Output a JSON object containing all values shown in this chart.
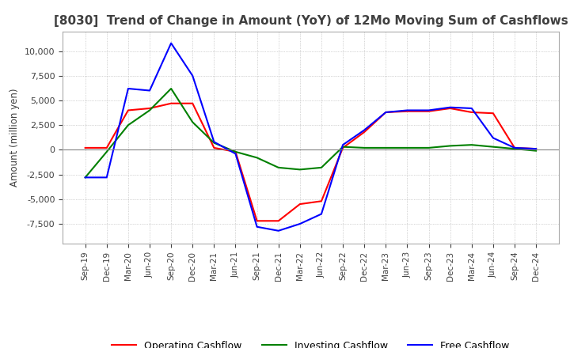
{
  "title": "[8030]  Trend of Change in Amount (YoY) of 12Mo Moving Sum of Cashflows",
  "ylabel": "Amount (million yen)",
  "x_labels": [
    "Sep-19",
    "Dec-19",
    "Mar-20",
    "Jun-20",
    "Sep-20",
    "Dec-20",
    "Mar-21",
    "Jun-21",
    "Sep-21",
    "Dec-21",
    "Mar-22",
    "Jun-22",
    "Sep-22",
    "Dec-22",
    "Mar-23",
    "Jun-23",
    "Sep-23",
    "Dec-23",
    "Mar-24",
    "Jun-24",
    "Sep-24",
    "Dec-24"
  ],
  "operating": [
    200,
    200,
    4000,
    4200,
    4700,
    4700,
    200,
    -200,
    -7200,
    -7200,
    -5500,
    -5200,
    200,
    1800,
    3800,
    3900,
    3900,
    4200,
    3800,
    3700,
    200,
    100
  ],
  "investing": [
    -2800,
    -200,
    2500,
    4000,
    6200,
    2800,
    700,
    -200,
    -800,
    -1800,
    -2000,
    -1800,
    300,
    200,
    200,
    200,
    200,
    400,
    500,
    300,
    100,
    -100
  ],
  "free": [
    -2800,
    -2800,
    6200,
    6000,
    10800,
    7500,
    800,
    -400,
    -7800,
    -8200,
    -7500,
    -6500,
    500,
    2000,
    3800,
    4000,
    4000,
    4300,
    4200,
    1200,
    200,
    100
  ],
  "operating_color": "#ff0000",
  "investing_color": "#008000",
  "free_color": "#0000ff",
  "ylim": [
    -9500,
    12000
  ],
  "yticks": [
    -7500,
    -5000,
    -2500,
    0,
    2500,
    5000,
    7500,
    10000
  ],
  "background_color": "#ffffff",
  "grid_color": "#b0b0b0",
  "title_fontsize": 11,
  "title_color": "#404040"
}
